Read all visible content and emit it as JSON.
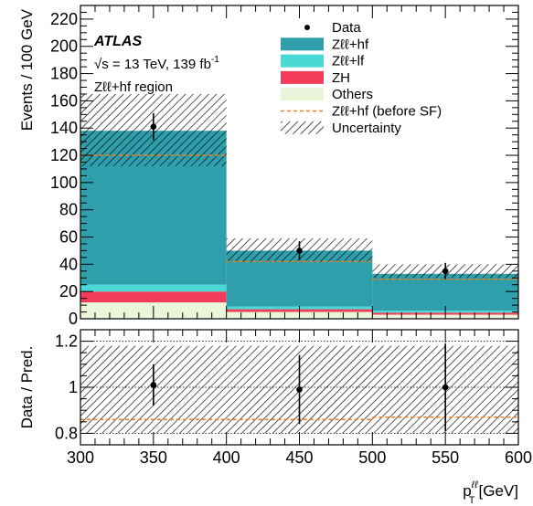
{
  "chart_data": [
    {
      "type": "bar",
      "panel": "main",
      "experiment": "ATLAS",
      "energy_line": "√s = 13 TeV, 139 fb",
      "lumi_exp": "-1",
      "region": "Zℓℓ+hf region",
      "ylabel": "Events / 100 GeV",
      "xlim": [
        300,
        600
      ],
      "ylim": [
        0,
        230
      ],
      "bins": [
        [
          300,
          400
        ],
        [
          400,
          500
        ],
        [
          500,
          600
        ]
      ],
      "xticks": [
        300,
        350,
        400,
        450,
        500,
        550,
        600
      ],
      "yticks": [
        0,
        20,
        40,
        60,
        80,
        100,
        120,
        140,
        160,
        180,
        200,
        220
      ],
      "stack": [
        {
          "name": "Others",
          "color": "#eaf5d9",
          "values": [
            12,
            5,
            3
          ]
        },
        {
          "name": "ZH",
          "color": "#f23c5a",
          "values": [
            8,
            2,
            1.5
          ]
        },
        {
          "name": "Zℓℓ+lf",
          "color": "#4ad9d5",
          "values": [
            5,
            2,
            1.5
          ]
        },
        {
          "name": "Zℓℓ+hf",
          "color": "#2e9fab",
          "values": [
            113,
            41,
            27
          ]
        }
      ],
      "prefit_hf": {
        "name": "Zℓℓ+hf (before SF)",
        "color": "#f07d1a",
        "values": [
          120,
          42,
          29
        ]
      },
      "uncertainty": {
        "name": "Uncertainty",
        "up": [
          165,
          59,
          40
        ],
        "down": [
          112,
          42,
          30
        ]
      },
      "data": {
        "name": "Data",
        "x": [
          350,
          450,
          550
        ],
        "y": [
          141,
          50,
          35
        ],
        "err": [
          10,
          7,
          6
        ]
      },
      "legend_position": "top-right",
      "legend": [
        {
          "name": "Data",
          "kind": "point"
        },
        {
          "name": "Zℓℓ+hf",
          "kind": "box",
          "color": "#2e9fab"
        },
        {
          "name": "Zℓℓ+lf",
          "kind": "box",
          "color": "#4ad9d5"
        },
        {
          "name": "ZH",
          "kind": "box",
          "color": "#f23c5a"
        },
        {
          "name": "Others",
          "kind": "box",
          "color": "#eaf5d9"
        },
        {
          "name": "Zℓℓ+hf (before SF)",
          "kind": "dashed",
          "color": "#f07d1a"
        },
        {
          "name": "Uncertainty",
          "kind": "hatch"
        }
      ]
    },
    {
      "type": "scatter",
      "panel": "ratio",
      "ylabel": "Data / Pred.",
      "xlabel_main": "p",
      "xlabel_sup": "ℓℓ",
      "xlabel_sub": "T",
      "xlabel_unit": "[GeV]",
      "xlim": [
        300,
        600
      ],
      "ylim": [
        0.75,
        1.25
      ],
      "yticks": [
        0.8,
        1,
        1.2
      ],
      "ytick_labels": [
        "0.8",
        "1",
        "1.2"
      ],
      "grid_y": [
        0.8,
        1.0,
        1.2
      ],
      "uncertainty_band": {
        "up": [
          1.18,
          1.18,
          1.18
        ],
        "down": [
          0.8,
          0.8,
          0.8
        ]
      },
      "prefit_ratio": [
        0.86,
        0.86,
        0.87
      ],
      "data": {
        "x": [
          350,
          450,
          550
        ],
        "y": [
          1.01,
          0.99,
          1.0
        ],
        "err": [
          0.09,
          0.15,
          0.19
        ]
      }
    }
  ]
}
